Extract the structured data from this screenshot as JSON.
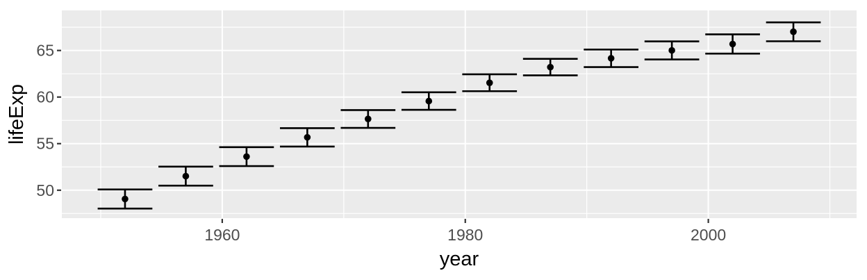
{
  "chart_data": {
    "type": "pointrange",
    "title": "",
    "xlabel": "year",
    "ylabel": "lifeExp",
    "x_tick_labels": [
      "1960",
      "1980",
      "2000"
    ],
    "x_ticks": [
      1960,
      1980,
      2000
    ],
    "x_minor_ticks": [
      1950,
      1970,
      1990,
      2010
    ],
    "y_tick_labels": [
      "50",
      "55",
      "60",
      "65"
    ],
    "y_ticks": [
      50,
      55,
      60,
      65
    ],
    "y_minor_ticks": [
      47.5,
      52.5,
      57.5,
      62.5,
      67.5
    ],
    "xlim": [
      1946.8,
      2012.2
    ],
    "ylim": [
      47.0,
      69.3
    ],
    "grid": true,
    "legend": false,
    "errorbar_cap_halfwidth_years": 2.25,
    "points": [
      {
        "year": 1952,
        "mean": 49.06,
        "lower": 48.03,
        "upper": 50.08
      },
      {
        "year": 1957,
        "mean": 51.51,
        "lower": 50.49,
        "upper": 52.53
      },
      {
        "year": 1962,
        "mean": 53.61,
        "lower": 52.59,
        "upper": 54.62
      },
      {
        "year": 1967,
        "mean": 55.68,
        "lower": 54.69,
        "upper": 56.66
      },
      {
        "year": 1972,
        "mean": 57.65,
        "lower": 56.69,
        "upper": 58.6
      },
      {
        "year": 1977,
        "mean": 59.57,
        "lower": 58.63,
        "upper": 60.51
      },
      {
        "year": 1982,
        "mean": 61.53,
        "lower": 60.63,
        "upper": 62.44
      },
      {
        "year": 1987,
        "mean": 63.21,
        "lower": 62.33,
        "upper": 64.1
      },
      {
        "year": 1992,
        "mean": 64.16,
        "lower": 63.22,
        "upper": 65.1
      },
      {
        "year": 1997,
        "mean": 65.01,
        "lower": 64.04,
        "upper": 65.98
      },
      {
        "year": 2002,
        "mean": 65.69,
        "lower": 64.66,
        "upper": 66.73
      },
      {
        "year": 2007,
        "mean": 67.01,
        "lower": 65.99,
        "upper": 68.02
      }
    ]
  },
  "style": {
    "page_bg": "#FFFFFF",
    "panel_bg": "#EBEBEB",
    "grid_color": "#FFFFFF",
    "data_color": "#000000",
    "tick_label_color": "#4D4D4D",
    "axis_title_color": "#000000",
    "tick_mark_color": "#333333"
  }
}
